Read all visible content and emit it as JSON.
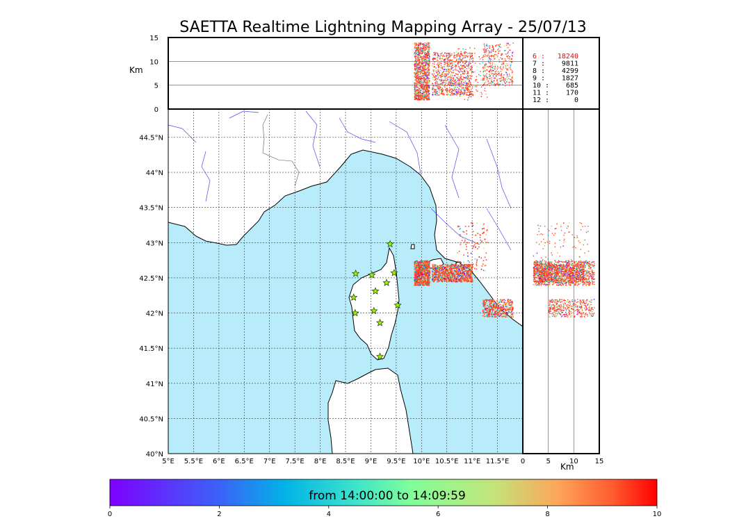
{
  "chart_data": {
    "type": "scatter",
    "title": "SAETTA Realtime Lightning Mapping Array - 25/07/13",
    "map": {
      "lon_range": [
        5,
        12
      ],
      "lat_range": [
        40,
        44.9
      ],
      "lon_ticks": [
        "5°E",
        "5.5°E",
        "6°E",
        "6.5°E",
        "7°E",
        "7.5°E",
        "8°E",
        "8.5°E",
        "9°E",
        "9.5°E",
        "10°E",
        "10.5°E",
        "11°E",
        "11.5°E"
      ],
      "lat_ticks": [
        "40°N",
        "40.5°N",
        "41°N",
        "41.5°N",
        "42°N",
        "42.5°N",
        "43°N",
        "43.5°N",
        "44°N",
        "44.5°N"
      ],
      "grid": true
    },
    "altitude_panels": {
      "unit_label": "Km",
      "range": [
        0,
        15
      ],
      "ticks": [
        "0",
        "5",
        "10",
        "15"
      ]
    },
    "stations": [
      {
        "lon": 8.7,
        "lat": 42.56
      },
      {
        "lon": 9.02,
        "lat": 42.54
      },
      {
        "lon": 9.38,
        "lat": 42.98
      },
      {
        "lon": 9.46,
        "lat": 42.57
      },
      {
        "lon": 9.31,
        "lat": 42.43
      },
      {
        "lon": 9.09,
        "lat": 42.31
      },
      {
        "lon": 8.66,
        "lat": 42.22
      },
      {
        "lon": 9.53,
        "lat": 42.11
      },
      {
        "lon": 9.06,
        "lat": 42.03
      },
      {
        "lon": 8.69,
        "lat": 42.0
      },
      {
        "lon": 9.18,
        "lat": 41.86
      },
      {
        "lon": 9.18,
        "lat": 41.38
      }
    ],
    "clusters": [
      {
        "lon": [
          9.85,
          10.15
        ],
        "lat": [
          42.4,
          42.75
        ],
        "alt": [
          2,
          14
        ],
        "count": 1200
      },
      {
        "lon": [
          10.2,
          11.0
        ],
        "lat": [
          42.45,
          42.7
        ],
        "alt": [
          3,
          12
        ],
        "count": 900
      },
      {
        "lon": [
          10.7,
          11.3
        ],
        "lat": [
          42.6,
          43.3
        ],
        "alt": [
          2,
          13
        ],
        "count": 120
      },
      {
        "lon": [
          11.2,
          11.8
        ],
        "lat": [
          41.95,
          42.2
        ],
        "alt": [
          5,
          14
        ],
        "count": 400
      }
    ],
    "station_stats": [
      {
        "label": "6  :",
        "value": "18240",
        "color": "#ff0000"
      },
      {
        "label": "7  :",
        "value": "9811",
        "color": "#000000"
      },
      {
        "label": "8  :",
        "value": "4299",
        "color": "#000000"
      },
      {
        "label": "9  :",
        "value": "1827",
        "color": "#000000"
      },
      {
        "label": "10 :",
        "value": "685",
        "color": "#000000"
      },
      {
        "label": "11 :",
        "value": "170",
        "color": "#000000"
      },
      {
        "label": "12 :",
        "value": "0",
        "color": "#000000"
      }
    ],
    "colorbar": {
      "label": "from 14:00:00 to 14:09:59",
      "range": [
        0,
        10
      ],
      "ticks": [
        "0",
        "2",
        "4",
        "6",
        "8",
        "10"
      ],
      "colormap": "rainbow"
    },
    "colors": {
      "sea": "#b8ecfa",
      "land": "#ffffff",
      "rivers": "#4a4af0",
      "station": "#9cf00c"
    }
  }
}
